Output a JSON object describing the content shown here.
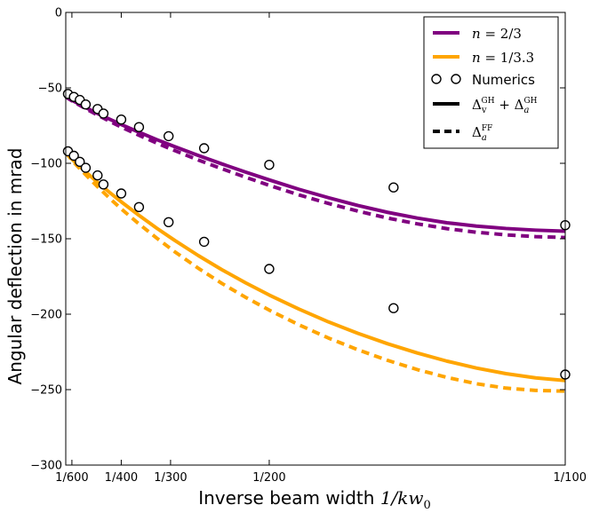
{
  "chart_data": {
    "type": "line",
    "ylabel": "Angular deflection in mrad",
    "xlabel_text": "Inverse beam width ",
    "xlabel_math": "1/kw",
    "xlabel_sub": "0",
    "xlim": [
      0.001563,
      0.01
    ],
    "ylim": [
      -300,
      0
    ],
    "yticks": [
      0,
      -50,
      -100,
      -150,
      -200,
      -250,
      -300
    ],
    "xticks": [
      {
        "value": 0.0016667,
        "label": "1/600"
      },
      {
        "value": 0.0025,
        "label": "1/400"
      },
      {
        "value": 0.0033333,
        "label": "1/300"
      },
      {
        "value": 0.005,
        "label": "1/200"
      },
      {
        "value": 0.01,
        "label": "1/100"
      }
    ],
    "legend": {
      "placement": "top-right",
      "entries": [
        {
          "label": "n = 2/3",
          "style": "line",
          "color": "#800080"
        },
        {
          "label": "n = 1/3.3",
          "style": "line",
          "color": "#FFA500"
        },
        {
          "label": "Numerics",
          "style": "marker"
        },
        {
          "label": "Δ_v^GH + Δ_a^GH",
          "style": "line",
          "color": "#000000"
        },
        {
          "label": "Δ_a^FF",
          "style": "dashed",
          "color": "#000000"
        }
      ]
    },
    "series": [
      {
        "name": "n=2/3 GH",
        "color": "#800080",
        "dash": false,
        "x": [
          0.001563,
          0.0017,
          0.0019,
          0.0021,
          0.0023,
          0.0025,
          0.0028,
          0.0031,
          0.0034,
          0.0038,
          0.0042,
          0.0046,
          0.005,
          0.0055,
          0.006,
          0.0065,
          0.007,
          0.0075,
          0.008,
          0.0085,
          0.009,
          0.0095,
          0.01
        ],
        "y": [
          -56,
          -58.9,
          -63.0,
          -67.0,
          -70.7,
          -74.3,
          -79.4,
          -84.3,
          -88.9,
          -94.8,
          -100.4,
          -105.8,
          -111.0,
          -117.2,
          -122.8,
          -128.0,
          -132.5,
          -136.3,
          -139.4,
          -141.6,
          -143.2,
          -144.3,
          -145
        ]
      },
      {
        "name": "n=2/3 FF",
        "color": "#800080",
        "dash": true,
        "x": [
          0.001563,
          0.0017,
          0.0019,
          0.0021,
          0.0023,
          0.0025,
          0.0028,
          0.0031,
          0.0034,
          0.0038,
          0.0042,
          0.0046,
          0.005,
          0.0055,
          0.006,
          0.0065,
          0.007,
          0.0075,
          0.008,
          0.0085,
          0.009,
          0.0095,
          0.01
        ],
        "y": [
          -56,
          -59.4,
          -63.8,
          -68.0,
          -72.1,
          -76.0,
          -81.4,
          -86.6,
          -91.5,
          -97.8,
          -103.6,
          -109.2,
          -114.6,
          -120.9,
          -126.6,
          -131.7,
          -136.3,
          -140.1,
          -143.3,
          -145.7,
          -147.4,
          -148.6,
          -149.2
        ]
      },
      {
        "name": "n=1/3.3 GH",
        "color": "#FFA500",
        "dash": false,
        "x": [
          0.001563,
          0.0017,
          0.0019,
          0.0021,
          0.0023,
          0.0025,
          0.0028,
          0.0031,
          0.0034,
          0.0038,
          0.0042,
          0.0046,
          0.005,
          0.0055,
          0.006,
          0.0065,
          0.007,
          0.0075,
          0.008,
          0.0085,
          0.009,
          0.0095,
          0.01
        ],
        "y": [
          -93,
          -98.5,
          -105.7,
          -112.6,
          -119.2,
          -125.5,
          -134.5,
          -143.0,
          -151.0,
          -161.1,
          -170.5,
          -179.2,
          -187.3,
          -196.6,
          -205.1,
          -212.7,
          -219.6,
          -225.7,
          -231.1,
          -235.7,
          -239.4,
          -242.2,
          -244
        ]
      },
      {
        "name": "n=1/3.3 FF",
        "color": "#FFA500",
        "dash": true,
        "x": [
          0.001563,
          0.0017,
          0.0019,
          0.0021,
          0.0023,
          0.0025,
          0.0028,
          0.0031,
          0.0034,
          0.0038,
          0.0042,
          0.0046,
          0.005,
          0.0055,
          0.006,
          0.0065,
          0.007,
          0.0075,
          0.008,
          0.0085,
          0.009,
          0.0095,
          0.01
        ],
        "y": [
          -93,
          -99.4,
          -107.6,
          -115.5,
          -123.0,
          -130.2,
          -140.2,
          -149.6,
          -158.5,
          -169.5,
          -179.6,
          -188.8,
          -197.3,
          -207.0,
          -215.8,
          -223.6,
          -230.6,
          -236.7,
          -241.9,
          -246.1,
          -249.0,
          -250.5,
          -251
        ]
      }
    ],
    "numerics": [
      {
        "x": 0.0016,
        "y": -54
      },
      {
        "x": 0.0017,
        "y": -56
      },
      {
        "x": 0.0018,
        "y": -58
      },
      {
        "x": 0.0019,
        "y": -61
      },
      {
        "x": 0.0021,
        "y": -64
      },
      {
        "x": 0.0022,
        "y": -67
      },
      {
        "x": 0.0025,
        "y": -71
      },
      {
        "x": 0.0028,
        "y": -76
      },
      {
        "x": 0.0033,
        "y": -82
      },
      {
        "x": 0.0039,
        "y": -90
      },
      {
        "x": 0.005,
        "y": -101
      },
      {
        "x": 0.0071,
        "y": -116
      },
      {
        "x": 0.01,
        "y": -141
      },
      {
        "x": 0.0016,
        "y": -92
      },
      {
        "x": 0.0017,
        "y": -95
      },
      {
        "x": 0.0018,
        "y": -99
      },
      {
        "x": 0.0019,
        "y": -103
      },
      {
        "x": 0.0021,
        "y": -108
      },
      {
        "x": 0.0022,
        "y": -114
      },
      {
        "x": 0.0025,
        "y": -120
      },
      {
        "x": 0.0028,
        "y": -129
      },
      {
        "x": 0.0033,
        "y": -139
      },
      {
        "x": 0.0039,
        "y": -152
      },
      {
        "x": 0.005,
        "y": -170
      },
      {
        "x": 0.0071,
        "y": -196
      },
      {
        "x": 0.01,
        "y": -240
      }
    ]
  }
}
